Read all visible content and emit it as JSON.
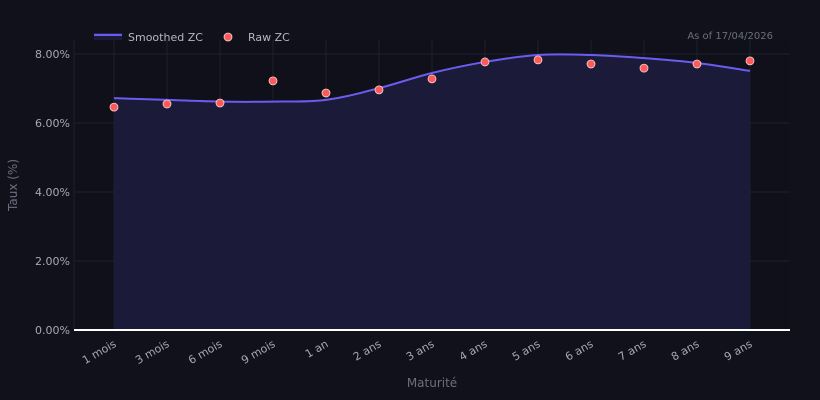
{
  "header": {
    "as_of": "As of 17/04/2026"
  },
  "legend": {
    "items": [
      {
        "label": "Smoothed ZC",
        "type": "line",
        "color": "#6b5cf0"
      },
      {
        "label": "Raw ZC",
        "type": "marker",
        "color": "#ff5a5a"
      }
    ]
  },
  "colors": {
    "background": "#10111a",
    "plot_background": "#0f1019",
    "area_fill": "#1b1a38",
    "line": "#6b5cf0",
    "marker": "#ff5a5a",
    "marker_edge": "#f2d6d6",
    "grid": "#1e2030",
    "zero_line": "#ffffff"
  },
  "chart_data": {
    "type": "line",
    "title": "",
    "xlabel": "Maturité",
    "ylabel": "Taux (%)",
    "categories": [
      "1 mois",
      "3 mois",
      "6 mois",
      "9 mois",
      "1 an",
      "2 ans",
      "3 ans",
      "4 ans",
      "5 ans",
      "6 ans",
      "7 ans",
      "8 ans",
      "9 ans"
    ],
    "series": [
      {
        "name": "Smoothed ZC",
        "style": "line+area",
        "values": [
          6.72,
          6.67,
          6.62,
          6.62,
          6.67,
          7.01,
          7.45,
          7.77,
          7.97,
          7.97,
          7.88,
          7.74,
          7.51
        ]
      },
      {
        "name": "Raw ZC",
        "style": "markers",
        "values": [
          6.46,
          6.55,
          6.58,
          7.22,
          6.87,
          6.96,
          7.28,
          7.77,
          7.83,
          7.71,
          7.59,
          7.71,
          7.8
        ]
      }
    ],
    "ylim": [
      0,
      8.4
    ],
    "yticks": [
      0,
      2,
      4,
      6,
      8
    ],
    "ytick_labels": [
      "0.00%",
      "2.00%",
      "4.00%",
      "6.00%",
      "8.00%"
    ],
    "grid": true,
    "legend_position": "top-left",
    "annotations": [
      "As of 17/04/2026"
    ]
  }
}
